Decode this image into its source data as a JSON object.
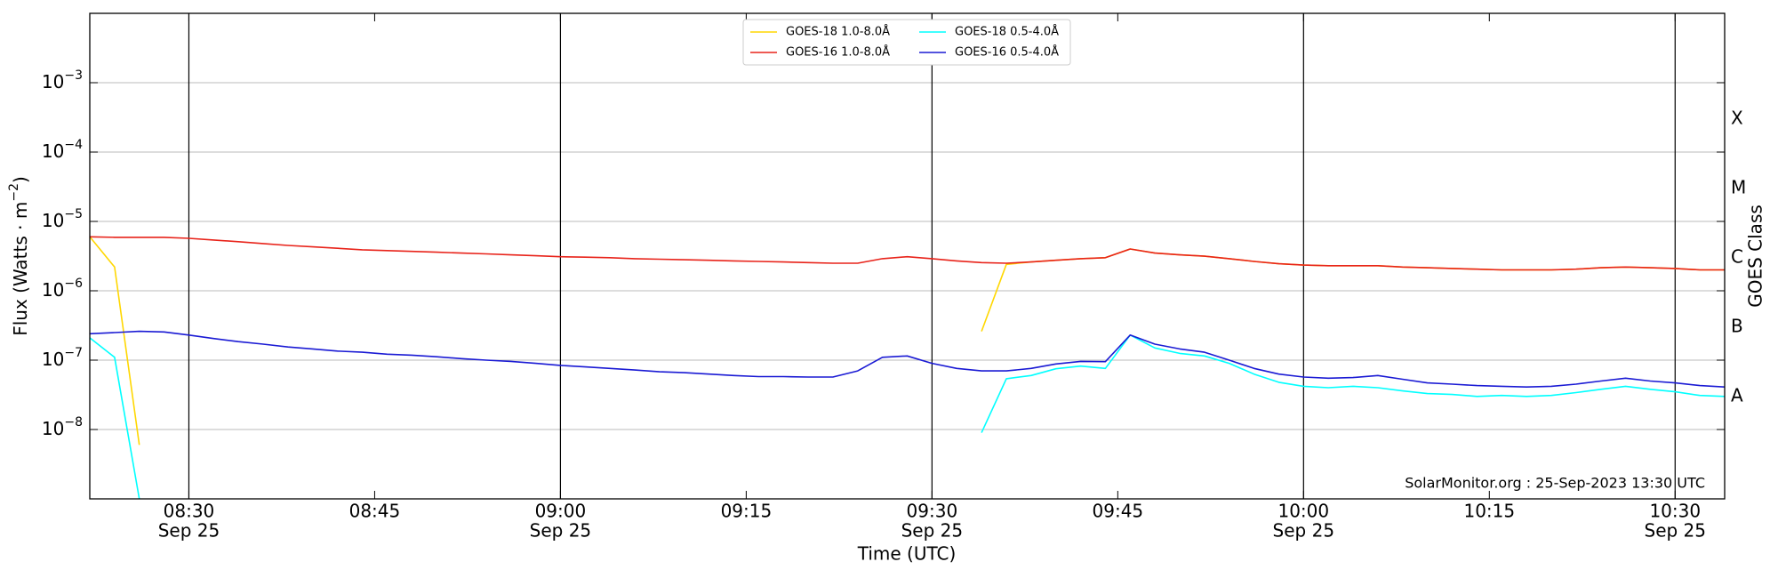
{
  "chart_data": {
    "type": "line",
    "x_label": "Time (UTC)",
    "y_label": "Flux (Watts · m",
    "y_label_exponent": "−2",
    "y_label_end": ")",
    "y2_label": "GOES Class",
    "annotation": "SolarMonitor.org : 25-Sep-2023 13:30 UTC",
    "log_y": true,
    "grid": true,
    "legend": "upper center",
    "xlim": [
      "08:22",
      "10:34"
    ],
    "xticks": [
      {
        "value": "08:30",
        "label": "08:30",
        "date": "Sep 25"
      },
      "08:45",
      {
        "value": "09:00",
        "label": "09:00",
        "date": "Sep 25"
      },
      "09:15",
      {
        "value": "09:30",
        "label": "09:30",
        "date": "Sep 25"
      },
      "09:45",
      {
        "value": "10:00",
        "label": "10:00",
        "date": "Sep 25"
      },
      "10:15",
      {
        "value": "10:30",
        "label": "10:30",
        "date": "Sep 25"
      }
    ],
    "ylim": [
      1e-09,
      0.01
    ],
    "yticks": [
      {
        "value": 1e-08,
        "label": "10",
        "exponent": "−8"
      },
      {
        "value": 1e-07,
        "label": "10",
        "exponent": "−7"
      },
      {
        "value": 1e-06,
        "label": "10",
        "exponent": "−6"
      },
      {
        "value": 1e-05,
        "label": "10",
        "exponent": "−5"
      },
      {
        "value": 0.0001,
        "label": "10",
        "exponent": "−4"
      },
      {
        "value": 0.001,
        "label": "10",
        "exponent": "−3"
      }
    ],
    "y2ticks": [
      {
        "value": 3e-08,
        "label": "A"
      },
      {
        "value": 3e-07,
        "label": "B"
      },
      {
        "value": 3e-06,
        "label": "C"
      },
      {
        "value": 3e-05,
        "label": "M"
      },
      {
        "value": 0.0003,
        "label": "X"
      }
    ],
    "x": [
      "08:22",
      "08:24",
      "08:26",
      "08:28",
      "08:30",
      "08:32",
      "08:34",
      "08:36",
      "08:38",
      "08:40",
      "08:42",
      "08:44",
      "08:46",
      "08:48",
      "08:50",
      "08:52",
      "08:54",
      "08:56",
      "08:58",
      "09:00",
      "09:02",
      "09:04",
      "09:06",
      "09:08",
      "09:10",
      "09:12",
      "09:14",
      "09:16",
      "09:18",
      "09:20",
      "09:22",
      "09:24",
      "09:26",
      "09:28",
      "09:30",
      "09:32",
      "09:34",
      "09:36",
      "09:38",
      "09:40",
      "09:42",
      "09:44",
      "09:46",
      "09:48",
      "09:50",
      "09:52",
      "09:54",
      "09:56",
      "09:58",
      "10:00",
      "10:02",
      "10:04",
      "10:06",
      "10:08",
      "10:10",
      "10:12",
      "10:14",
      "10:16",
      "10:18",
      "10:20",
      "10:22",
      "10:24",
      "10:26",
      "10:28",
      "10:30",
      "10:32",
      "10:34"
    ],
    "series": [
      {
        "name": "GOES-18 1.0-8.0Å",
        "color": "#ffd700",
        "values": [
          6e-06,
          2.2e-06,
          6e-09,
          null,
          null,
          null,
          null,
          null,
          null,
          null,
          null,
          null,
          null,
          null,
          null,
          null,
          null,
          null,
          null,
          null,
          null,
          null,
          null,
          null,
          null,
          null,
          null,
          null,
          null,
          null,
          null,
          null,
          null,
          null,
          null,
          null,
          2.6e-07,
          2.4e-06,
          2.6e-06,
          2.75e-06,
          2.9e-06,
          3e-06,
          4e-06,
          3.5e-06,
          3.3e-06,
          3.15e-06,
          2.9e-06,
          2.65e-06,
          2.45e-06,
          2.35e-06,
          2.3e-06,
          2.3e-06,
          2.3e-06,
          2.2e-06,
          2.15e-06,
          2.1e-06,
          2.05e-06,
          2e-06,
          2e-06,
          2e-06,
          2.05e-06,
          2.15e-06,
          2.2e-06,
          2.15e-06,
          2.1e-06,
          2e-06,
          2e-06
        ]
      },
      {
        "name": "GOES-16 1.0-8.0Å",
        "color": "#e8231a",
        "values": [
          6e-06,
          5.9e-06,
          5.9e-06,
          5.9e-06,
          5.7e-06,
          5.4e-06,
          5.1e-06,
          4.8e-06,
          4.5e-06,
          4.3e-06,
          4.1e-06,
          3.9e-06,
          3.8e-06,
          3.7e-06,
          3.6e-06,
          3.5e-06,
          3.4e-06,
          3.3e-06,
          3.2e-06,
          3.1e-06,
          3.05e-06,
          3e-06,
          2.9e-06,
          2.85e-06,
          2.8e-06,
          2.75e-06,
          2.7e-06,
          2.65e-06,
          2.6e-06,
          2.55e-06,
          2.5e-06,
          2.5e-06,
          2.9e-06,
          3.1e-06,
          2.9e-06,
          2.7e-06,
          2.55e-06,
          2.5e-06,
          2.6e-06,
          2.75e-06,
          2.9e-06,
          3e-06,
          4e-06,
          3.5e-06,
          3.3e-06,
          3.15e-06,
          2.9e-06,
          2.65e-06,
          2.45e-06,
          2.35e-06,
          2.3e-06,
          2.3e-06,
          2.3e-06,
          2.2e-06,
          2.15e-06,
          2.1e-06,
          2.05e-06,
          2e-06,
          2e-06,
          2e-06,
          2.05e-06,
          2.15e-06,
          2.2e-06,
          2.15e-06,
          2.1e-06,
          2e-06,
          2e-06
        ]
      },
      {
        "name": "GOES-18 0.5-4.0Å",
        "color": "#00ffff",
        "values": [
          2.1e-07,
          1.1e-07,
          1e-09,
          null,
          null,
          null,
          null,
          null,
          null,
          null,
          null,
          null,
          null,
          null,
          null,
          null,
          null,
          null,
          null,
          null,
          null,
          null,
          null,
          null,
          null,
          null,
          null,
          null,
          null,
          null,
          null,
          null,
          null,
          null,
          null,
          null,
          9e-09,
          5.4e-08,
          6e-08,
          7.5e-08,
          8.2e-08,
          7.6e-08,
          2.3e-07,
          1.5e-07,
          1.25e-07,
          1.15e-07,
          9e-08,
          6.3e-08,
          4.8e-08,
          4.2e-08,
          4e-08,
          4.2e-08,
          4e-08,
          3.6e-08,
          3.3e-08,
          3.2e-08,
          3e-08,
          3.1e-08,
          3e-08,
          3.1e-08,
          3.4e-08,
          3.8e-08,
          4.2e-08,
          3.8e-08,
          3.5e-08,
          3.1e-08,
          3e-08
        ]
      },
      {
        "name": "GOES-16 0.5-4.0Å",
        "color": "#1a1ad4",
        "values": [
          2.4e-07,
          2.5e-07,
          2.6e-07,
          2.55e-07,
          2.3e-07,
          2.05e-07,
          1.85e-07,
          1.7e-07,
          1.55e-07,
          1.45e-07,
          1.35e-07,
          1.3e-07,
          1.22e-07,
          1.18e-07,
          1.12e-07,
          1.05e-07,
          1e-07,
          9.6e-08,
          9e-08,
          8.4e-08,
          8e-08,
          7.6e-08,
          7.2e-08,
          6.8e-08,
          6.6e-08,
          6.3e-08,
          6e-08,
          5.8e-08,
          5.8e-08,
          5.7e-08,
          5.7e-08,
          7e-08,
          1.1e-07,
          1.15e-07,
          9e-08,
          7.6e-08,
          7e-08,
          7e-08,
          7.6e-08,
          8.8e-08,
          9.6e-08,
          9.5e-08,
          2.3e-07,
          1.7e-07,
          1.45e-07,
          1.3e-07,
          1e-07,
          7.6e-08,
          6.3e-08,
          5.7e-08,
          5.5e-08,
          5.6e-08,
          6e-08,
          5.3e-08,
          4.7e-08,
          4.5e-08,
          4.3e-08,
          4.2e-08,
          4.1e-08,
          4.2e-08,
          4.5e-08,
          5e-08,
          5.5e-08,
          5e-08,
          4.7e-08,
          4.3e-08,
          4.1e-08
        ]
      }
    ]
  }
}
